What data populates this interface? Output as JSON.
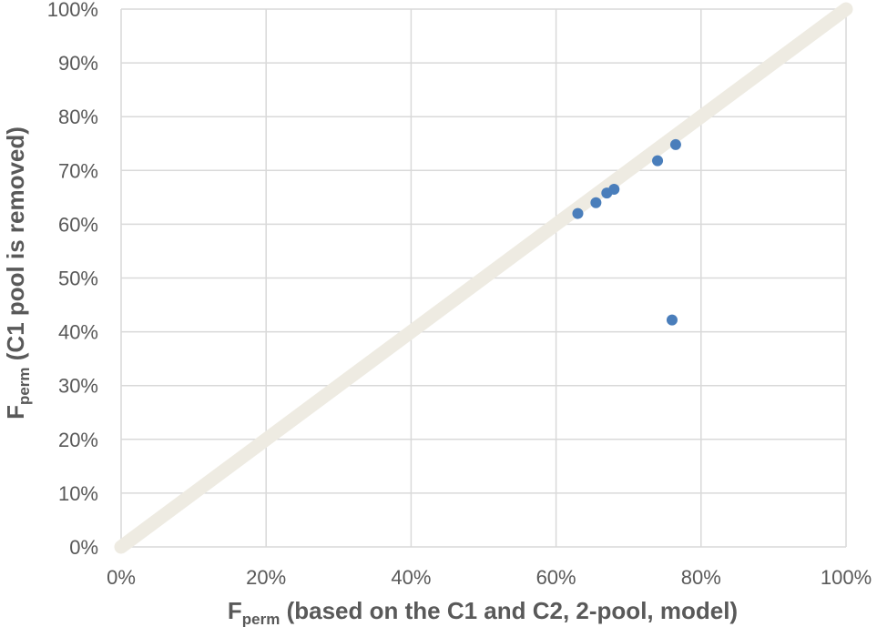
{
  "chart_data": {
    "type": "scatter",
    "title": "",
    "xlabel": {
      "main": "F",
      "sub": "perm",
      "rest": " (based on the C1 and C2, 2-pool, model)"
    },
    "ylabel": {
      "main": "F",
      "sub": "perm",
      "rest": " (C1 pool is removed)"
    },
    "xlim": [
      0,
      100
    ],
    "ylim": [
      0,
      100
    ],
    "x_ticks": [
      "0%",
      "20%",
      "40%",
      "60%",
      "80%",
      "100%"
    ],
    "y_ticks": [
      "0%",
      "10%",
      "20%",
      "30%",
      "40%",
      "50%",
      "60%",
      "70%",
      "80%",
      "90%",
      "100%"
    ],
    "grid": true,
    "series": [
      {
        "color": "#4a7ebb",
        "points": [
          {
            "x": 63.0,
            "y": 62.0
          },
          {
            "x": 65.5,
            "y": 64.0
          },
          {
            "x": 67.0,
            "y": 65.8
          },
          {
            "x": 68.0,
            "y": 66.5
          },
          {
            "x": 74.0,
            "y": 71.8
          },
          {
            "x": 76.5,
            "y": 74.8
          },
          {
            "x": 76.0,
            "y": 42.2
          }
        ]
      }
    ],
    "reference_line": {
      "x": [
        0,
        100
      ],
      "y": [
        0,
        100
      ],
      "color": "#eeebe2"
    }
  }
}
